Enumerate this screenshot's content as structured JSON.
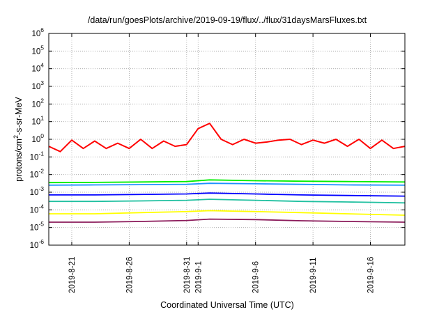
{
  "chart_data": {
    "type": "line",
    "title": "/data/run/goesPlots/archive/2019-09-19/flux/../flux/31daysMarsFluxes.txt",
    "xlabel": "Coordinated Universal Time (UTC)",
    "ylabel": "protons/cm²-s-sr-MeV",
    "ylabel_parts": {
      "pre": "protons/cm",
      "sup": "2",
      "post": "-s-sr-MeV"
    },
    "y_scale": "log",
    "ylim": [
      1e-06,
      1000000.0
    ],
    "y_ticks": [
      {
        "base": "10",
        "exp": "-6",
        "value": 1e-06
      },
      {
        "base": "10",
        "exp": "-5",
        "value": 1e-05
      },
      {
        "base": "10",
        "exp": "-4",
        "value": 0.0001
      },
      {
        "base": "10",
        "exp": "-3",
        "value": 0.001
      },
      {
        "base": "10",
        "exp": "-2",
        "value": 0.01
      },
      {
        "base": "10",
        "exp": "-1",
        "value": 0.1
      },
      {
        "base": "10",
        "exp": "0",
        "value": 1
      },
      {
        "base": "10",
        "exp": "1",
        "value": 10
      },
      {
        "base": "10",
        "exp": "2",
        "value": 100
      },
      {
        "base": "10",
        "exp": "3",
        "value": 1000
      },
      {
        "base": "10",
        "exp": "4",
        "value": 10000
      },
      {
        "base": "10",
        "exp": "5",
        "value": 100000
      },
      {
        "base": "10",
        "exp": "6",
        "value": 1000000
      }
    ],
    "xlim": [
      "2019-08-19",
      "2019-09-19"
    ],
    "x_ticks": [
      "2019-8-21",
      "2019-8-26",
      "2019-8-31",
      "2019-9-1",
      "2019-9-6",
      "2019-9-11",
      "2019-9-16"
    ],
    "grid": true,
    "legend": "none",
    "series": [
      {
        "color": "#ff0000",
        "x": [
          "2019-08-19",
          "2019-08-20",
          "2019-08-21",
          "2019-08-22",
          "2019-08-23",
          "2019-08-24",
          "2019-08-25",
          "2019-08-26",
          "2019-08-27",
          "2019-08-28",
          "2019-08-29",
          "2019-08-30",
          "2019-08-31",
          "2019-09-01",
          "2019-09-02",
          "2019-09-03",
          "2019-09-04",
          "2019-09-05",
          "2019-09-06",
          "2019-09-07",
          "2019-09-08",
          "2019-09-09",
          "2019-09-10",
          "2019-09-11",
          "2019-09-12",
          "2019-09-13",
          "2019-09-14",
          "2019-09-15",
          "2019-09-16",
          "2019-09-17",
          "2019-09-18",
          "2019-09-19"
        ],
        "values": [
          0.4,
          0.2,
          0.9,
          0.3,
          0.8,
          0.3,
          0.6,
          0.3,
          1.0,
          0.3,
          0.8,
          0.4,
          0.5,
          4.0,
          8.0,
          1.0,
          0.5,
          1.0,
          0.6,
          0.7,
          0.9,
          1.0,
          0.5,
          0.9,
          0.6,
          1.0,
          0.4,
          1.0,
          0.3,
          0.9,
          0.3,
          0.4
        ]
      },
      {
        "color": "#00ee00",
        "x": [
          "2019-08-19",
          "2019-08-23",
          "2019-08-27",
          "2019-08-31",
          "2019-09-02",
          "2019-09-06",
          "2019-09-10",
          "2019-09-14",
          "2019-09-19"
        ],
        "values": [
          0.0035,
          0.0036,
          0.0038,
          0.004,
          0.005,
          0.0045,
          0.0042,
          0.004,
          0.0038
        ]
      },
      {
        "color": "#1e90ff",
        "x": [
          "2019-08-19",
          "2019-08-23",
          "2019-08-27",
          "2019-08-31",
          "2019-09-02",
          "2019-09-06",
          "2019-09-10",
          "2019-09-14",
          "2019-09-19"
        ],
        "values": [
          0.0025,
          0.0026,
          0.0027,
          0.0028,
          0.0032,
          0.003,
          0.0028,
          0.0026,
          0.0025
        ]
      },
      {
        "color": "#0000ff",
        "x": [
          "2019-08-19",
          "2019-08-23",
          "2019-08-27",
          "2019-08-31",
          "2019-09-02",
          "2019-09-06",
          "2019-09-10",
          "2019-09-14",
          "2019-09-19"
        ],
        "values": [
          0.0007,
          0.0007,
          0.00075,
          0.0008,
          0.0009,
          0.0008,
          0.0007,
          0.00065,
          0.0006
        ]
      },
      {
        "color": "#20c0a0",
        "x": [
          "2019-08-19",
          "2019-08-23",
          "2019-08-27",
          "2019-08-31",
          "2019-09-02",
          "2019-09-06",
          "2019-09-10",
          "2019-09-14",
          "2019-09-19"
        ],
        "values": [
          0.0003,
          0.0003,
          0.00032,
          0.00035,
          0.0004,
          0.00035,
          0.0003,
          0.00028,
          0.00025
        ]
      },
      {
        "color": "#ffff00",
        "x": [
          "2019-08-19",
          "2019-08-23",
          "2019-08-27",
          "2019-08-31",
          "2019-09-02",
          "2019-09-06",
          "2019-09-10",
          "2019-09-14",
          "2019-09-19"
        ],
        "values": [
          6e-05,
          6e-05,
          7e-05,
          8e-05,
          9e-05,
          8e-05,
          7e-05,
          6e-05,
          5e-05
        ]
      },
      {
        "color": "#8b1a5a",
        "x": [
          "2019-08-19",
          "2019-08-23",
          "2019-08-27",
          "2019-08-31",
          "2019-09-02",
          "2019-09-06",
          "2019-09-10",
          "2019-09-14",
          "2019-09-19"
        ],
        "values": [
          2e-05,
          2e-05,
          2.2e-05,
          2.5e-05,
          3e-05,
          2.8e-05,
          2.4e-05,
          2.2e-05,
          2e-05
        ]
      }
    ]
  }
}
